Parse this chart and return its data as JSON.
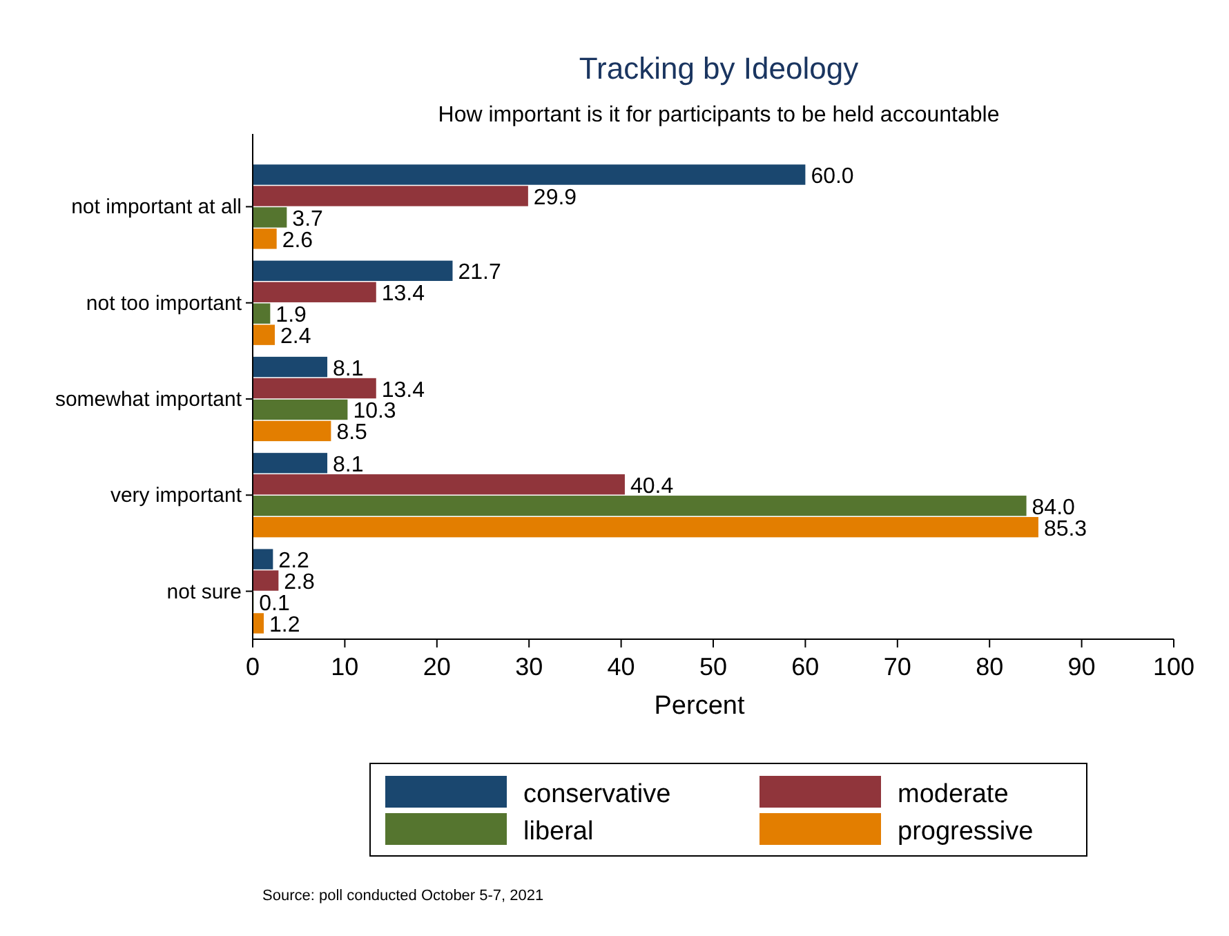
{
  "chart_data": {
    "type": "bar",
    "orientation": "horizontal",
    "title": "Tracking by Ideology",
    "subtitle": "How important is it for participants to be held accountable",
    "xlabel": "Percent",
    "categories": [
      "not important at all",
      "not too important",
      "somewhat important",
      "very important",
      "not sure"
    ],
    "series": [
      {
        "name": "conservative",
        "color": "#1a476f",
        "values": [
          60.0,
          21.7,
          8.1,
          8.1,
          2.2
        ],
        "value_labels": [
          "60.0",
          "21.7",
          "8.1",
          "8.1",
          "2.2"
        ]
      },
      {
        "name": "moderate",
        "color": "#90353b",
        "values": [
          29.9,
          13.4,
          13.4,
          40.4,
          2.8
        ],
        "value_labels": [
          "29.9",
          "13.4",
          "13.4",
          "40.4",
          "2.8"
        ]
      },
      {
        "name": "liberal",
        "color": "#55752f",
        "values": [
          3.7,
          1.9,
          10.3,
          84.0,
          0.1
        ],
        "value_labels": [
          "3.7",
          "1.9",
          "10.3",
          "84.0",
          "0.1"
        ]
      },
      {
        "name": "progressive",
        "color": "#e37e00",
        "values": [
          2.6,
          2.4,
          8.5,
          85.3,
          1.2
        ],
        "value_labels": [
          "2.6",
          "2.4",
          "8.5",
          "85.3",
          "1.2"
        ]
      }
    ],
    "xlim": [
      0,
      100
    ],
    "xticks": [
      0,
      10,
      20,
      30,
      40,
      50,
      60,
      70,
      80,
      90,
      100
    ],
    "grid": false,
    "legend": "bottom",
    "annotations": [
      "Source: poll conducted October 5-7, 2021"
    ]
  }
}
